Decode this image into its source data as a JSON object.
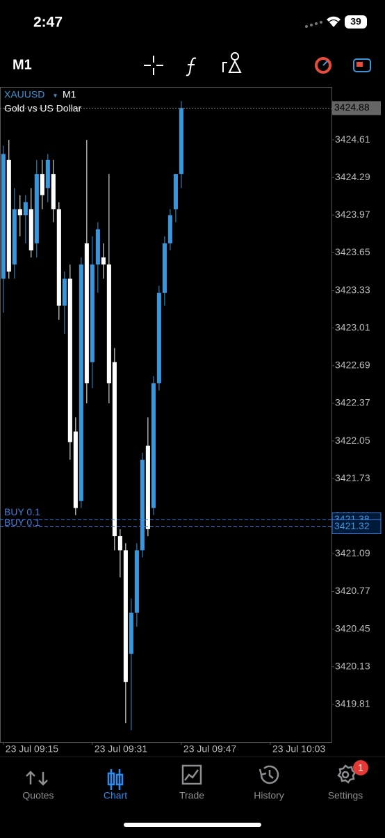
{
  "status_bar": {
    "time": "2:47",
    "battery": "39"
  },
  "toolbar": {
    "timeframe": "M1"
  },
  "chart_data": {
    "type": "candlestick",
    "symbol": "XAUUSD",
    "timeframe": "M1",
    "subtitle": "Gold vs US Dollar",
    "up_color": "#3d95d9",
    "down_color": "#ffffff",
    "open": [
      3423.43,
      3424.44,
      3423.55,
      3424.02,
      3423.97,
      3424.02,
      3423.73,
      3424.32,
      3424.2,
      3424.32,
      3424.02,
      3423.2,
      3423.43,
      3422.13,
      3421.54,
      3423.73,
      3422.72,
      3423.55,
      3423.61,
      3423.55,
      3422.72,
      3421.24,
      3421.12,
      3420.24,
      3420.59,
      3421.12,
      3422.01,
      3421.48,
      3422.54,
      3423.31,
      3423.73,
      3424.02,
      3424.32
    ],
    "high": [
      3424.56,
      3424.61,
      3424.2,
      3424.14,
      3424.14,
      3424.2,
      3424.44,
      3424.44,
      3424.49,
      3424.44,
      3424.08,
      3423.49,
      3423.55,
      3422.25,
      3423.61,
      3424.61,
      3423.79,
      3423.91,
      3423.73,
      3424.32,
      3422.84,
      3421.3,
      3421.18,
      3420.71,
      3421.18,
      3421.95,
      3422.25,
      3422.6,
      3423.37,
      3423.79,
      3424.02,
      3424.32,
      3424.94
    ],
    "low": [
      3423.14,
      3423.43,
      3423.43,
      3423.79,
      3423.73,
      3423.61,
      3423.61,
      3424.02,
      3424.08,
      3423.91,
      3423.08,
      3422.96,
      3421.89,
      3421.42,
      3421.48,
      3422.37,
      3422.5,
      3423.31,
      3423.43,
      3422.37,
      3421.12,
      3420.89,
      3419.65,
      3419.59,
      3420.47,
      3421.06,
      3421.24,
      3421.42,
      3422.48,
      3423.2,
      3423.67,
      3423.91,
      3424.2
    ],
    "close": [
      3424.49,
      3423.49,
      3424.02,
      3423.97,
      3424.08,
      3423.67,
      3424.32,
      3424.14,
      3424.44,
      3424.02,
      3423.2,
      3423.43,
      3422.04,
      3421.48,
      3423.55,
      3422.54,
      3423.55,
      3423.85,
      3423.55,
      3422.54,
      3421.24,
      3421.12,
      3420.0,
      3420.59,
      3421.12,
      3421.89,
      3421.3,
      3422.54,
      3423.31,
      3423.73,
      3423.97,
      3424.32,
      3424.88
    ],
    "xlim": [
      -0.6,
      59
    ],
    "xticks": [
      {
        "value": 0,
        "label": "23 Jul 09:15"
      },
      {
        "value": 16,
        "label": "23 Jul 09:31"
      },
      {
        "value": 32,
        "label": "23 Jul 09:47"
      },
      {
        "value": 48,
        "label": "23 Jul 10:03"
      }
    ],
    "ylim": [
      3419.49,
      3425.06
    ],
    "yticks": [
      3424.61,
      3424.29,
      3423.97,
      3423.65,
      3423.33,
      3423.01,
      3422.69,
      3422.37,
      3422.05,
      3421.73,
      3421.41,
      3421.09,
      3420.77,
      3420.45,
      3420.13,
      3419.81
    ],
    "orders": [
      {
        "label": "BUY 0.1",
        "price": 3421.38
      },
      {
        "label": "BUY 0.1",
        "price": 3421.32
      }
    ]
  },
  "tab_bar": {
    "tabs": [
      "Quotes",
      "Chart",
      "Trade",
      "History",
      "Settings"
    ],
    "active": 1,
    "badge": "1"
  }
}
